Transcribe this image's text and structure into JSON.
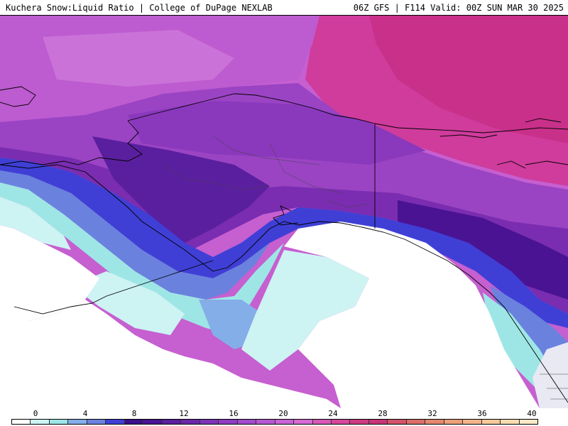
{
  "header": {
    "left_title": "Kuchera Snow:Liquid Ratio | College of DuPage NEXLAB",
    "right_title": "06Z GFS | F114 Valid: 00Z SUN MAR 30 2025"
  },
  "legend": {
    "tick_labels": [
      "0",
      "4",
      "8",
      "12",
      "16",
      "20",
      "24",
      "28",
      "32",
      "36",
      "40"
    ],
    "colors": [
      "#ffffff",
      "#cdf3f3",
      "#9ee6e6",
      "#84aee8",
      "#6a82de",
      "#3f3fd6",
      "#3a0f8a",
      "#4a1393",
      "#5a1f9e",
      "#6a28a8",
      "#7d33b6",
      "#8f3cc2",
      "#a24acb",
      "#b657d2",
      "#c863d6",
      "#d56ad3",
      "#d758b6",
      "#d6479a",
      "#cf3b80",
      "#c93378",
      "#d2536a",
      "#dc6e6a",
      "#e4876f",
      "#eca07a",
      "#f2b58a",
      "#f6c99a",
      "#fadcb0",
      "#fde9c8"
    ]
  },
  "map": {
    "colors": {
      "ocean": "#ffffff",
      "light_cyan": "#cdf3f3",
      "cyan": "#9ee6e6",
      "light_blue": "#84aee8",
      "blue": "#5a6ee0",
      "deep_blue": "#3f3fd6",
      "dark_purple": "#4a1393",
      "purple": "#7a2db0",
      "violet": "#9a44c4",
      "magenta": "#c65fd0",
      "pink": "#d03aa0",
      "border_line": "#000000"
    }
  }
}
